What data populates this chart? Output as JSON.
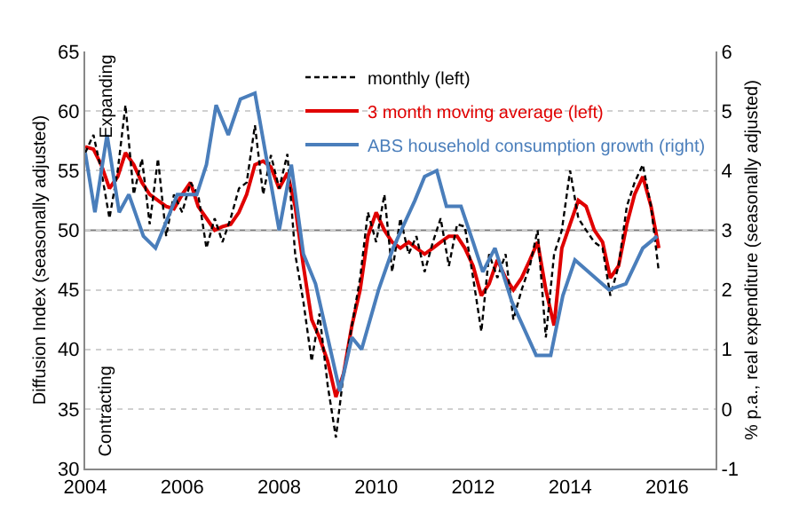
{
  "chart_data": {
    "type": "line",
    "ylabel": "Diffusion Index (seasonally adjusted)",
    "y2label": "% p.a., real expenditure (seasonally adjusted)",
    "xlim": [
      2004,
      2017
    ],
    "xticks": [
      2004,
      2006,
      2008,
      2010,
      2012,
      2014,
      2016
    ],
    "ylim": [
      30,
      65
    ],
    "yticks": [
      30,
      35,
      40,
      45,
      50,
      55,
      60,
      65
    ],
    "y2lim": [
      -1,
      6
    ],
    "y2ticks": [
      -1,
      0,
      1,
      2,
      3,
      4,
      5,
      6
    ],
    "grid": "y",
    "legend": "top right",
    "ref_lines": [
      {
        "axis": "y",
        "value": 50,
        "color": "#7f7f7f"
      }
    ],
    "annotations": [
      "Expanding",
      "Contracting"
    ],
    "series": [
      {
        "name": "monthly (left)",
        "color": "#000000",
        "line_style": "dashed",
        "x": [
          2004.0,
          2004.17,
          2004.33,
          2004.5,
          2004.67,
          2004.83,
          2005.0,
          2005.17,
          2005.33,
          2005.5,
          2005.67,
          2005.83,
          2006.0,
          2006.17,
          2006.33,
          2006.5,
          2006.67,
          2006.83,
          2007.0,
          2007.17,
          2007.33,
          2007.5,
          2007.67,
          2007.83,
          2008.0,
          2008.17,
          2008.33,
          2008.5,
          2008.67,
          2008.83,
          2009.0,
          2009.17,
          2009.33,
          2009.5,
          2009.67,
          2009.83,
          2010.0,
          2010.17,
          2010.33,
          2010.5,
          2010.67,
          2010.83,
          2011.0,
          2011.17,
          2011.33,
          2011.5,
          2011.67,
          2011.83,
          2012.0,
          2012.17,
          2012.33,
          2012.5,
          2012.67,
          2012.83,
          2013.0,
          2013.17,
          2013.33,
          2013.5,
          2013.67,
          2013.83,
          2014.0,
          2014.17,
          2014.33,
          2014.5,
          2014.67,
          2014.83,
          2015.0,
          2015.17,
          2015.33,
          2015.5,
          2015.67,
          2015.83
        ],
        "values": [
          56.5,
          58,
          55,
          51,
          55,
          60.5,
          53,
          56,
          50.5,
          56,
          49.5,
          53,
          51.5,
          54,
          53,
          48.5,
          51,
          49,
          51,
          53.5,
          54,
          58.8,
          53,
          56.3,
          53.5,
          56.4,
          48,
          44,
          39,
          43,
          37,
          32.6,
          38,
          42,
          46,
          51.5,
          49,
          53,
          46.5,
          51,
          48,
          49.5,
          46.5,
          49,
          51,
          47,
          50.5,
          50.3,
          46,
          41.5,
          48,
          46,
          48,
          42.5,
          45,
          47,
          50,
          41,
          48,
          50,
          55,
          51,
          50,
          49,
          48.5,
          44.5,
          47,
          52,
          54,
          55.5,
          52,
          46.5
        ]
      },
      {
        "name": "3 month moving average (left)",
        "color": "#e00000",
        "x": [
          2004.0,
          2004.17,
          2004.33,
          2004.5,
          2004.67,
          2004.83,
          2005.0,
          2005.17,
          2005.33,
          2005.5,
          2005.67,
          2005.83,
          2006.0,
          2006.17,
          2006.33,
          2006.5,
          2006.67,
          2006.83,
          2007.0,
          2007.17,
          2007.33,
          2007.5,
          2007.67,
          2007.83,
          2008.0,
          2008.17,
          2008.33,
          2008.5,
          2008.67,
          2008.83,
          2009.0,
          2009.17,
          2009.33,
          2009.5,
          2009.67,
          2009.83,
          2010.0,
          2010.17,
          2010.33,
          2010.5,
          2010.67,
          2010.83,
          2011.0,
          2011.17,
          2011.33,
          2011.5,
          2011.67,
          2011.83,
          2012.0,
          2012.17,
          2012.33,
          2012.5,
          2012.67,
          2012.83,
          2013.0,
          2013.17,
          2013.33,
          2013.5,
          2013.67,
          2013.83,
          2014.0,
          2014.17,
          2014.33,
          2014.5,
          2014.67,
          2014.83,
          2015.0,
          2015.17,
          2015.33,
          2015.5,
          2015.67,
          2015.83
        ],
        "values": [
          57,
          56.8,
          55.5,
          53.5,
          54.5,
          56.5,
          55.5,
          54,
          53,
          52.5,
          52,
          51.8,
          53,
          54,
          52,
          51,
          50,
          50.3,
          50.5,
          51.5,
          53,
          55.5,
          55.8,
          55.3,
          53.5,
          54.8,
          52,
          47,
          42.5,
          41,
          39,
          36,
          38,
          42,
          45,
          49.5,
          51.5,
          50,
          49,
          48.5,
          49,
          48.5,
          48,
          48.5,
          49,
          49.5,
          49.5,
          48.5,
          47,
          44.5,
          45.5,
          47.5,
          46,
          45,
          46,
          47.5,
          49,
          45,
          42,
          48.5,
          50.5,
          52.5,
          52,
          50,
          49,
          46,
          47,
          50.5,
          53,
          54.5,
          52,
          48.5
        ]
      },
      {
        "name": "ABS household consumption growth (right)",
        "color": "#4a7ebb",
        "axis": "y2",
        "x": [
          2004.0,
          2004.2,
          2004.45,
          2004.7,
          2004.9,
          2005.2,
          2005.45,
          2005.9,
          2006.3,
          2006.5,
          2006.7,
          2006.95,
          2007.2,
          2007.5,
          2008.0,
          2008.25,
          2008.5,
          2008.75,
          2009.25,
          2009.5,
          2009.7,
          2010.05,
          2010.35,
          2010.8,
          2011.0,
          2011.25,
          2011.45,
          2011.75,
          2012.0,
          2012.2,
          2012.45,
          2012.8,
          2013.3,
          2013.6,
          2013.85,
          2014.1,
          2014.8,
          2015.15,
          2015.5,
          2015.8
        ],
        "values": [
          4.3,
          3.3,
          4.6,
          3.3,
          3.6,
          2.9,
          2.7,
          3.6,
          3.6,
          4.1,
          5.1,
          4.6,
          5.2,
          5.3,
          3.0,
          4.1,
          2.6,
          2.1,
          0.3,
          1.2,
          1.0,
          2.0,
          2.7,
          3.5,
          3.9,
          4.0,
          3.4,
          3.4,
          2.8,
          2.3,
          2.7,
          1.8,
          0.9,
          0.9,
          1.9,
          2.5,
          2.0,
          2.1,
          2.7,
          2.9
        ]
      }
    ]
  }
}
